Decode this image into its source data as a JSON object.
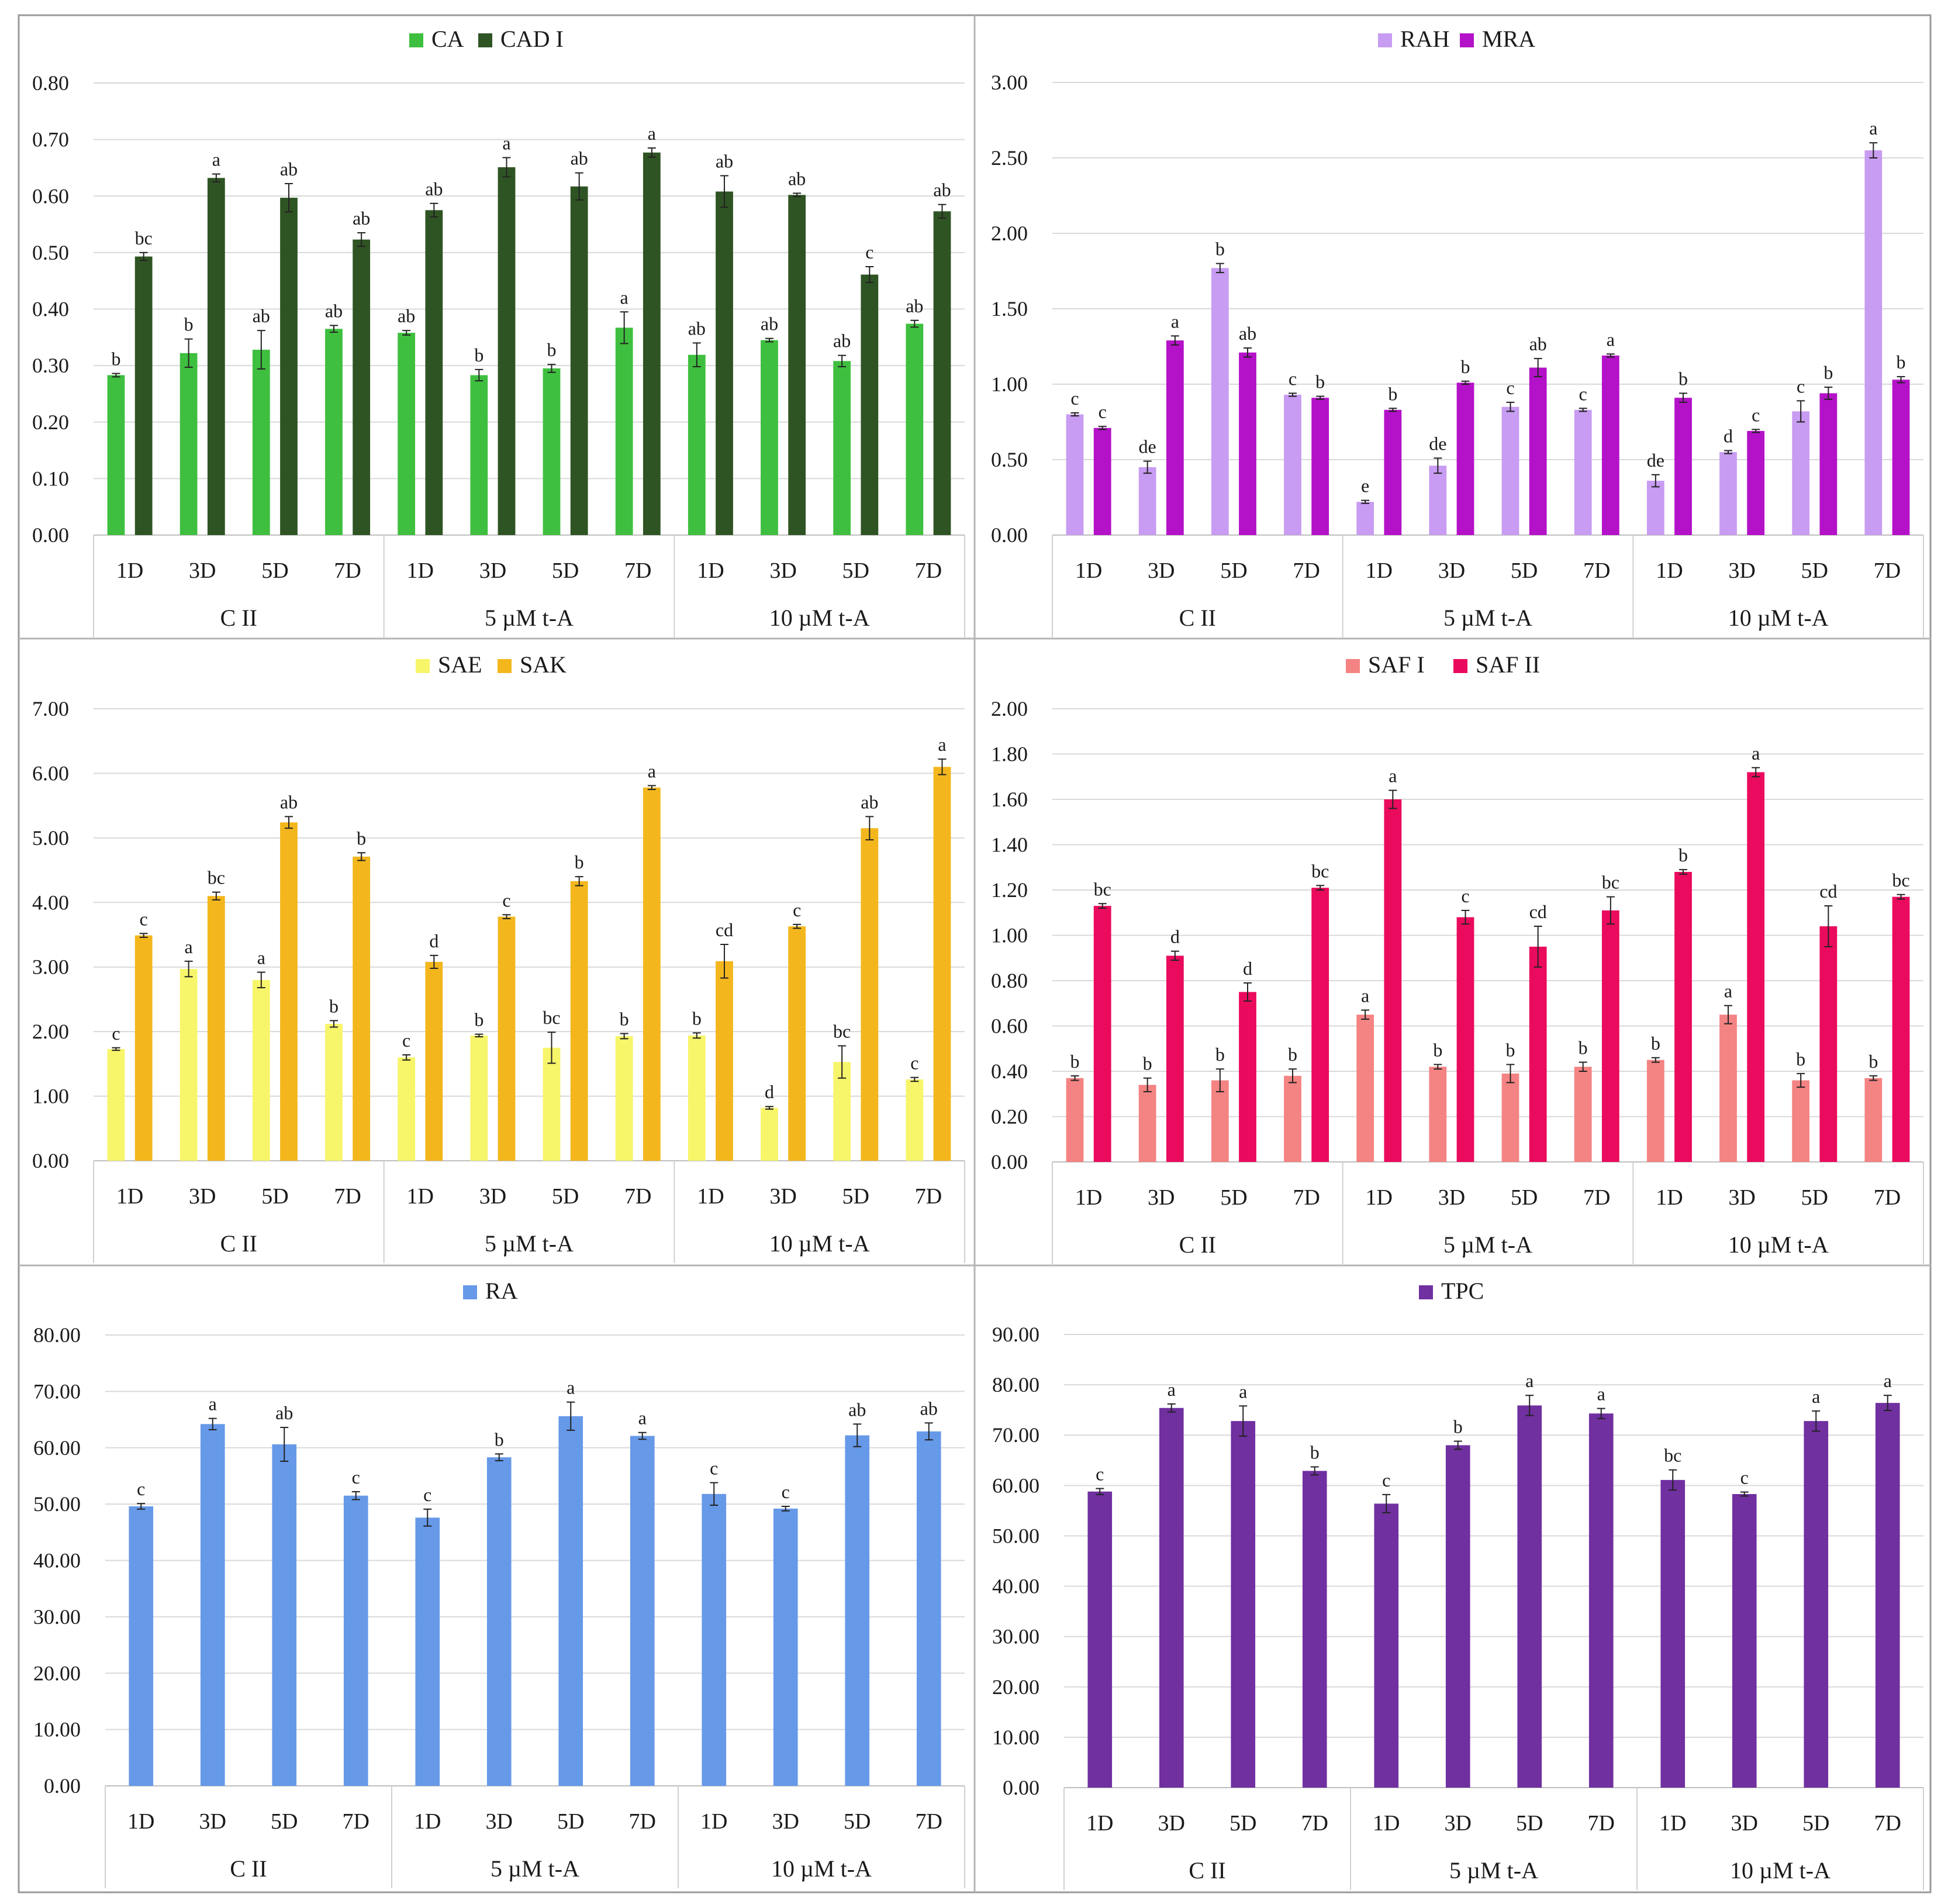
{
  "x_structure": {
    "days": [
      "1D",
      "3D",
      "5D",
      "7D"
    ],
    "groups": [
      "C II",
      "5 µM t-A",
      "10 µM t-A"
    ]
  },
  "chart_data": [
    {
      "type": "bar",
      "title": "",
      "xlabel": "",
      "ylabel": "",
      "ylim": [
        0,
        0.8
      ],
      "yticks": [
        "0.00",
        "0.10",
        "0.20",
        "0.30",
        "0.40",
        "0.50",
        "0.60",
        "0.70",
        "0.80"
      ],
      "grid": true,
      "legend": "top-center",
      "categories": [
        "1D",
        "3D",
        "5D",
        "7D",
        "1D",
        "3D",
        "5D",
        "7D",
        "1D",
        "3D",
        "5D",
        "7D"
      ],
      "groups": [
        "C II",
        "5 µM t-A",
        "10 µM t-A"
      ],
      "series": [
        {
          "name": "CA",
          "color": "#3fbf3f",
          "values": [
            0.283,
            0.322,
            0.328,
            0.365,
            0.358,
            0.283,
            0.295,
            0.367,
            0.319,
            0.345,
            0.308,
            0.374
          ],
          "errors": [
            0.003,
            0.025,
            0.034,
            0.006,
            0.004,
            0.01,
            0.007,
            0.028,
            0.021,
            0.003,
            0.01,
            0.006
          ],
          "labels": [
            "b",
            "b",
            "ab",
            "ab",
            "ab",
            "b",
            "b",
            "a",
            "ab",
            "ab",
            "ab",
            "ab"
          ]
        },
        {
          "name": "CAD I",
          "color": "#2f5424",
          "values": [
            0.493,
            0.632,
            0.597,
            0.523,
            0.575,
            0.651,
            0.617,
            0.677,
            0.608,
            0.602,
            0.461,
            0.573
          ],
          "errors": [
            0.007,
            0.007,
            0.025,
            0.012,
            0.012,
            0.017,
            0.024,
            0.008,
            0.028,
            0.003,
            0.014,
            0.012
          ],
          "labels": [
            "bc",
            "a",
            "ab",
            "ab",
            "ab",
            "a",
            "ab",
            "a",
            "ab",
            "ab",
            "c",
            "ab"
          ]
        }
      ]
    },
    {
      "type": "bar",
      "title": "",
      "xlabel": "",
      "ylabel": "",
      "ylim": [
        0,
        3.0
      ],
      "yticks": [
        "0.00",
        "0.50",
        "1.00",
        "1.50",
        "2.00",
        "2.50",
        "3.00"
      ],
      "grid": true,
      "legend": "top-center",
      "categories": [
        "1D",
        "3D",
        "5D",
        "7D",
        "1D",
        "3D",
        "5D",
        "7D",
        "1D",
        "3D",
        "5D",
        "7D"
      ],
      "groups": [
        "C II",
        "5 µM t-A",
        "10 µM t-A"
      ],
      "series": [
        {
          "name": "RAH",
          "color": "#c89cf2",
          "values": [
            0.8,
            0.45,
            1.77,
            0.93,
            0.22,
            0.46,
            0.85,
            0.83,
            0.36,
            0.55,
            0.82,
            2.55
          ],
          "errors": [
            0.01,
            0.04,
            0.03,
            0.01,
            0.01,
            0.05,
            0.03,
            0.01,
            0.04,
            0.01,
            0.07,
            0.05
          ],
          "labels": [
            "c",
            "de",
            "b",
            "c",
            "e",
            "de",
            "c",
            "c",
            "de",
            "d",
            "c",
            "a"
          ]
        },
        {
          "name": "MRA",
          "color": "#b412c8",
          "values": [
            0.71,
            1.29,
            1.21,
            0.91,
            0.83,
            1.01,
            1.11,
            1.19,
            0.91,
            0.69,
            0.94,
            1.03
          ],
          "errors": [
            0.01,
            0.03,
            0.03,
            0.01,
            0.01,
            0.01,
            0.06,
            0.01,
            0.03,
            0.01,
            0.04,
            0.02
          ],
          "labels": [
            "c",
            "a",
            "ab",
            "b",
            "b",
            "b",
            "ab",
            "a",
            "b",
            "c",
            "b",
            "b"
          ]
        }
      ]
    },
    {
      "type": "bar",
      "title": "",
      "xlabel": "",
      "ylabel": "",
      "ylim": [
        0,
        7.0
      ],
      "yticks": [
        "0.00",
        "1.00",
        "2.00",
        "3.00",
        "4.00",
        "5.00",
        "6.00",
        "7.00"
      ],
      "grid": true,
      "legend": "top-center",
      "categories": [
        "1D",
        "3D",
        "5D",
        "7D",
        "1D",
        "3D",
        "5D",
        "7D",
        "1D",
        "3D",
        "5D",
        "7D"
      ],
      "groups": [
        "C II",
        "5 µM t-A",
        "10 µM t-A"
      ],
      "series": [
        {
          "name": "SAE",
          "color": "#f7f56a",
          "values": [
            1.73,
            2.97,
            2.8,
            2.12,
            1.6,
            1.94,
            1.75,
            1.93,
            1.94,
            0.82,
            1.53,
            1.26
          ],
          "errors": [
            0.02,
            0.12,
            0.12,
            0.05,
            0.04,
            0.02,
            0.24,
            0.04,
            0.04,
            0.02,
            0.25,
            0.03
          ],
          "labels": [
            "c",
            "a",
            "a",
            "b",
            "c",
            "b",
            "bc",
            "b",
            "b",
            "d",
            "bc",
            "c"
          ]
        },
        {
          "name": "SAK",
          "color": "#f3b71d",
          "values": [
            3.49,
            4.1,
            5.24,
            4.71,
            3.08,
            3.78,
            4.33,
            5.78,
            3.09,
            3.63,
            5.15,
            6.1
          ],
          "errors": [
            0.03,
            0.06,
            0.09,
            0.06,
            0.1,
            0.03,
            0.07,
            0.03,
            0.26,
            0.03,
            0.18,
            0.12
          ],
          "labels": [
            "c",
            "bc",
            "ab",
            "b",
            "d",
            "c",
            "b",
            "a",
            "cd",
            "c",
            "ab",
            "a"
          ]
        }
      ]
    },
    {
      "type": "bar",
      "title": "",
      "xlabel": "",
      "ylabel": "",
      "ylim": [
        0,
        2.0
      ],
      "yticks": [
        "0.00",
        "0.20",
        "0.40",
        "0.60",
        "0.80",
        "1.00",
        "1.20",
        "1.40",
        "1.60",
        "1.80",
        "2.00"
      ],
      "grid": true,
      "legend": "top-center",
      "categories": [
        "1D",
        "3D",
        "5D",
        "7D",
        "1D",
        "3D",
        "5D",
        "7D",
        "1D",
        "3D",
        "5D",
        "7D"
      ],
      "groups": [
        "C II",
        "5 µM t-A",
        "10 µM t-A"
      ],
      "series": [
        {
          "name": "SAF I",
          "color": "#f48383",
          "values": [
            0.37,
            0.34,
            0.36,
            0.38,
            0.65,
            0.42,
            0.39,
            0.42,
            0.45,
            0.65,
            0.36,
            0.37
          ],
          "errors": [
            0.01,
            0.03,
            0.05,
            0.03,
            0.02,
            0.01,
            0.04,
            0.02,
            0.01,
            0.04,
            0.03,
            0.01
          ],
          "labels": [
            "b",
            "b",
            "b",
            "b",
            "a",
            "b",
            "b",
            "b",
            "b",
            "a",
            "b",
            "b"
          ]
        },
        {
          "name": "SAF II",
          "color": "#ea0b5e",
          "values": [
            1.13,
            0.91,
            0.75,
            1.21,
            1.6,
            1.08,
            0.95,
            1.11,
            1.28,
            1.72,
            1.04,
            1.17
          ],
          "errors": [
            0.01,
            0.02,
            0.04,
            0.01,
            0.04,
            0.03,
            0.09,
            0.06,
            0.01,
            0.02,
            0.09,
            0.01
          ],
          "labels": [
            "bc",
            "d",
            "d",
            "bc",
            "a",
            "c",
            "cd",
            "bc",
            "b",
            "a",
            "cd",
            "bc"
          ]
        }
      ]
    },
    {
      "type": "bar",
      "title": "",
      "xlabel": "",
      "ylabel": "",
      "ylim": [
        0,
        80
      ],
      "yticks": [
        "0.00",
        "10.00",
        "20.00",
        "30.00",
        "40.00",
        "50.00",
        "60.00",
        "70.00",
        "80.00"
      ],
      "grid": true,
      "legend": "top-center",
      "categories": [
        "1D",
        "3D",
        "5D",
        "7D",
        "1D",
        "3D",
        "5D",
        "7D",
        "1D",
        "3D",
        "5D",
        "7D"
      ],
      "groups": [
        "C II",
        "5 µM t-A",
        "10 µM t-A"
      ],
      "series": [
        {
          "name": "RA",
          "color": "#6699e8",
          "values": [
            49.6,
            64.2,
            60.6,
            51.5,
            47.6,
            58.3,
            65.6,
            62.1,
            51.8,
            49.2,
            62.2,
            62.9
          ],
          "errors": [
            0.5,
            1.0,
            3.0,
            0.7,
            1.5,
            0.6,
            2.5,
            0.6,
            2.0,
            0.4,
            2.0,
            1.5
          ],
          "labels": [
            "c",
            "a",
            "ab",
            "c",
            "c",
            "b",
            "a",
            "a",
            "c",
            "c",
            "ab",
            "ab"
          ]
        }
      ]
    },
    {
      "type": "bar",
      "title": "",
      "xlabel": "",
      "ylabel": "",
      "ylim": [
        0,
        90
      ],
      "yticks": [
        "0.00",
        "10.00",
        "20.00",
        "30.00",
        "40.00",
        "50.00",
        "60.00",
        "70.00",
        "80.00",
        "90.00"
      ],
      "grid": true,
      "legend": "top-center",
      "categories": [
        "1D",
        "3D",
        "5D",
        "7D",
        "1D",
        "3D",
        "5D",
        "7D",
        "1D",
        "3D",
        "5D",
        "7D"
      ],
      "groups": [
        "C II",
        "5 µM t-A",
        "10 µM t-A"
      ],
      "series": [
        {
          "name": "TPC",
          "color": "#7030a0",
          "values": [
            58.8,
            75.4,
            72.8,
            62.9,
            56.4,
            68.0,
            75.9,
            74.3,
            61.1,
            58.3,
            72.8,
            76.4
          ],
          "errors": [
            0.6,
            0.8,
            3.0,
            0.8,
            1.8,
            0.8,
            2.0,
            1.0,
            2.0,
            0.4,
            2.0,
            1.5
          ],
          "labels": [
            "c",
            "a",
            "a",
            "b",
            "c",
            "b",
            "a",
            "a",
            "bc",
            "c",
            "a",
            "a"
          ]
        }
      ]
    }
  ]
}
